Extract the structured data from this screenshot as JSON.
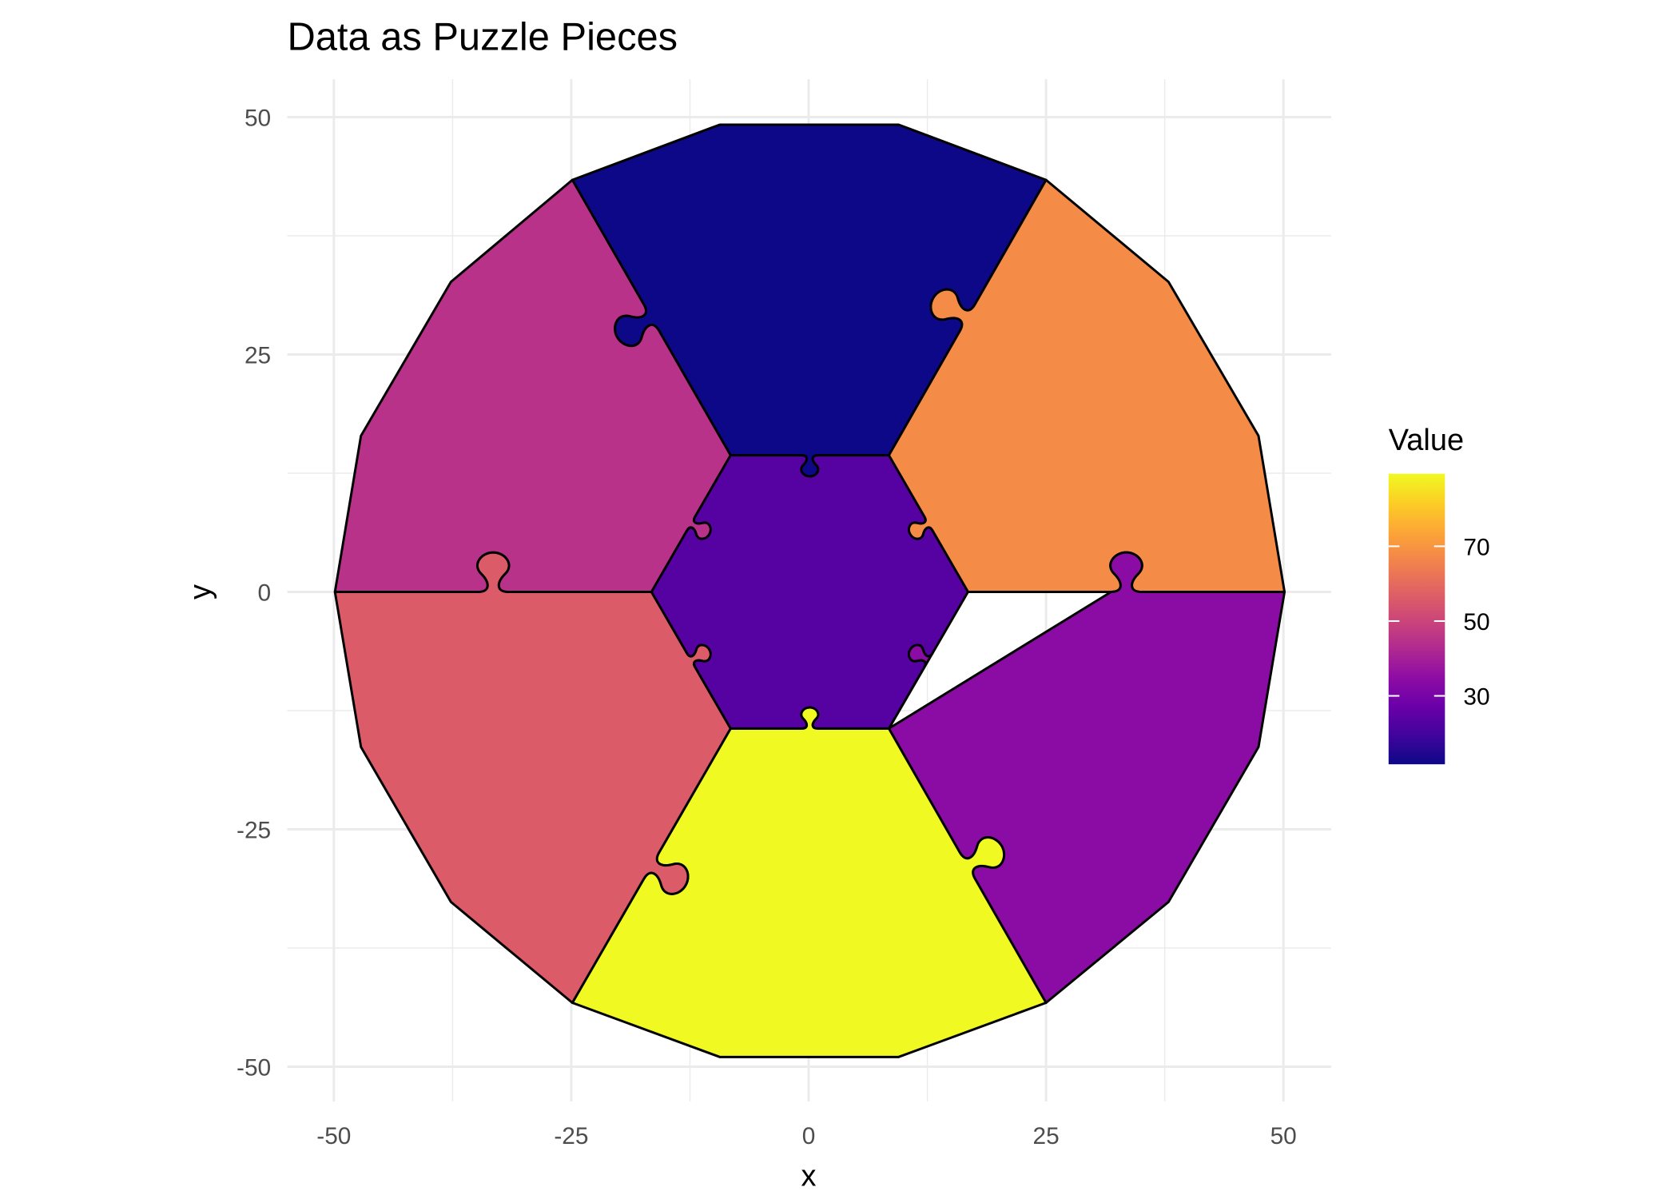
{
  "chart_data": {
    "type": "polygon-map",
    "title": "Data as Puzzle Pieces",
    "xlabel": "x",
    "ylabel": "y",
    "xlim": [
      -55,
      55
    ],
    "ylim": [
      -53,
      54
    ],
    "x_ticks": [
      "-50",
      "-25",
      "0",
      "25",
      "50"
    ],
    "y_ticks": [
      "50",
      "25",
      "0",
      "-25",
      "-50"
    ],
    "x_tick_values": [
      -50,
      -25,
      0,
      25,
      50
    ],
    "y_tick_values": [
      50,
      25,
      0,
      -25,
      -50
    ],
    "grid": true,
    "legend": {
      "title": "Value",
      "position": "right",
      "colormap": "plasma",
      "limits": [
        11.7,
        89.4
      ],
      "ticks": [
        "70",
        "50",
        "30"
      ],
      "tick_values": [
        70,
        50,
        30
      ]
    },
    "pieces": [
      {
        "name": "top",
        "value": 11.7
      },
      {
        "name": "top-right",
        "value": 67.6
      },
      {
        "name": "bottom-right",
        "value": 34.2
      },
      {
        "name": "bottom",
        "value": 89.4
      },
      {
        "name": "bottom-left",
        "value": 56.0
      },
      {
        "name": "top-left",
        "value": 45.0
      },
      {
        "name": "center",
        "value": 23.4
      }
    ]
  }
}
